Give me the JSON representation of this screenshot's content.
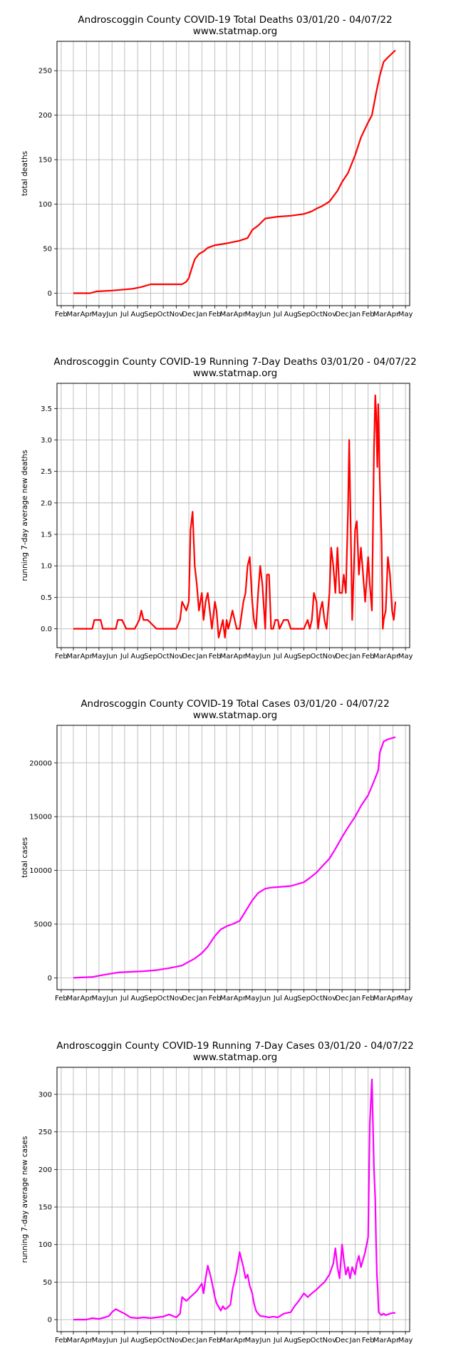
{
  "chart_data": [
    {
      "type": "line",
      "title": "Androscoggin County COVID-19 Total Deaths 03/01/20 - 04/07/22",
      "subtitle": "www.statmap.org",
      "xlabel": "",
      "ylabel": "total deaths",
      "color": "#ff0000",
      "ylim": [
        -14,
        283
      ],
      "yticks": [
        0,
        50,
        100,
        150,
        200,
        250
      ],
      "grid": true,
      "x_tick_labels": [
        "Feb",
        "Mar",
        "Apr",
        "May",
        "Jun",
        "Jul",
        "Aug",
        "Sep",
        "Oct",
        "Nov",
        "Dec",
        "Jan",
        "Feb",
        "Mar",
        "Apr",
        "May",
        "Jun",
        "Jul",
        "Aug",
        "Sep",
        "Oct",
        "Nov",
        "Dec",
        "Jan",
        "Feb",
        "Mar",
        "Apr",
        "May"
      ],
      "x_tick_months": [
        "2020-02",
        "2020-03",
        "2020-04",
        "2020-05",
        "2020-06",
        "2020-07",
        "2020-08",
        "2020-09",
        "2020-10",
        "2020-11",
        "2020-12",
        "2021-01",
        "2021-02",
        "2021-03",
        "2021-04",
        "2021-05",
        "2021-06",
        "2021-07",
        "2021-08",
        "2021-09",
        "2021-10",
        "2021-11",
        "2021-12",
        "2022-01",
        "2022-02",
        "2022-03",
        "2022-04",
        "2022-05"
      ],
      "x": [
        "2020-03-01",
        "2020-04-10",
        "2020-04-25",
        "2020-06-01",
        "2020-07-20",
        "2020-08-10",
        "2020-09-01",
        "2020-10-15",
        "2020-11-15",
        "2020-11-25",
        "2020-12-01",
        "2020-12-08",
        "2020-12-15",
        "2020-12-25",
        "2021-01-05",
        "2021-01-15",
        "2021-02-01",
        "2021-03-01",
        "2021-04-01",
        "2021-04-20",
        "2021-05-01",
        "2021-05-15",
        "2021-06-01",
        "2021-07-01",
        "2021-08-01",
        "2021-09-01",
        "2021-09-20",
        "2021-10-01",
        "2021-10-15",
        "2021-11-01",
        "2021-11-20",
        "2021-12-01",
        "2021-12-15",
        "2022-01-01",
        "2022-01-15",
        "2022-02-01",
        "2022-02-10",
        "2022-02-20",
        "2022-03-01",
        "2022-03-10",
        "2022-03-20",
        "2022-04-07"
      ],
      "values": [
        0,
        0,
        2,
        3,
        5,
        7,
        10,
        10,
        10,
        13,
        17,
        28,
        38,
        44,
        47,
        51,
        54,
        56,
        59,
        62,
        71,
        76,
        84,
        86,
        87,
        89,
        92,
        95,
        98,
        103,
        115,
        125,
        135,
        155,
        175,
        192,
        200,
        225,
        245,
        260,
        265,
        273
      ]
    },
    {
      "type": "line",
      "title": "Androscoggin County COVID-19 Running 7-Day Deaths 03/01/20 - 04/07/22",
      "subtitle": "www.statmap.org",
      "xlabel": "",
      "ylabel": "running 7-day average new deaths",
      "color": "#ff0000",
      "ylim": [
        -0.3,
        3.9
      ],
      "yticks": [
        0.0,
        0.5,
        1.0,
        1.5,
        2.0,
        2.5,
        3.0,
        3.5
      ],
      "grid": true,
      "x_tick_labels": [
        "Feb",
        "Mar",
        "Apr",
        "May",
        "Jun",
        "Jul",
        "Aug",
        "Sep",
        "Oct",
        "Nov",
        "Dec",
        "Jan",
        "Feb",
        "Mar",
        "Apr",
        "May",
        "Jun",
        "Jul",
        "Aug",
        "Sep",
        "Oct",
        "Nov",
        "Dec",
        "Jan",
        "Feb",
        "Mar",
        "Apr",
        "May"
      ],
      "x_tick_months": [
        "2020-02",
        "2020-03",
        "2020-04",
        "2020-05",
        "2020-06",
        "2020-07",
        "2020-08",
        "2020-09",
        "2020-10",
        "2020-11",
        "2020-12",
        "2021-01",
        "2021-02",
        "2021-03",
        "2021-04",
        "2021-05",
        "2021-06",
        "2021-07",
        "2021-08",
        "2021-09",
        "2021-10",
        "2021-11",
        "2021-12",
        "2022-01",
        "2022-02",
        "2022-03",
        "2022-04",
        "2022-05"
      ],
      "x": [
        "2020-03-01",
        "2020-04-15",
        "2020-04-20",
        "2020-05-05",
        "2020-05-10",
        "2020-06-10",
        "2020-06-15",
        "2020-06-25",
        "2020-07-05",
        "2020-07-25",
        "2020-08-05",
        "2020-08-10",
        "2020-08-15",
        "2020-08-25",
        "2020-09-15",
        "2020-11-01",
        "2020-11-10",
        "2020-11-15",
        "2020-11-25",
        "2020-12-01",
        "2020-12-05",
        "2020-12-10",
        "2020-12-15",
        "2020-12-20",
        "2020-12-25",
        "2021-01-01",
        "2021-01-05",
        "2021-01-10",
        "2021-01-15",
        "2021-01-20",
        "2021-01-25",
        "2021-02-01",
        "2021-02-05",
        "2021-02-10",
        "2021-02-15",
        "2021-02-20",
        "2021-02-25",
        "2021-03-01",
        "2021-03-05",
        "2021-03-10",
        "2021-03-15",
        "2021-03-25",
        "2021-04-01",
        "2021-04-10",
        "2021-04-15",
        "2021-04-20",
        "2021-04-25",
        "2021-05-01",
        "2021-05-05",
        "2021-05-10",
        "2021-05-15",
        "2021-05-20",
        "2021-05-25",
        "2021-06-01",
        "2021-06-05",
        "2021-06-10",
        "2021-06-15",
        "2021-06-20",
        "2021-06-25",
        "2021-07-01",
        "2021-07-05",
        "2021-07-15",
        "2021-07-25",
        "2021-08-01",
        "2021-08-10",
        "2021-08-15",
        "2021-09-01",
        "2021-09-10",
        "2021-09-15",
        "2021-09-20",
        "2021-09-25",
        "2021-10-01",
        "2021-10-05",
        "2021-10-10",
        "2021-10-15",
        "2021-10-20",
        "2021-10-25",
        "2021-11-01",
        "2021-11-05",
        "2021-11-10",
        "2021-11-15",
        "2021-11-20",
        "2021-11-25",
        "2021-12-01",
        "2021-12-05",
        "2021-12-10",
        "2021-12-15",
        "2021-12-18",
        "2021-12-22",
        "2021-12-25",
        "2022-01-01",
        "2022-01-05",
        "2022-01-10",
        "2022-01-15",
        "2022-01-20",
        "2022-01-25",
        "2022-02-01",
        "2022-02-05",
        "2022-02-10",
        "2022-02-15",
        "2022-02-18",
        "2022-02-20",
        "2022-02-23",
        "2022-02-25",
        "2022-03-01",
        "2022-03-05",
        "2022-03-08",
        "2022-03-10",
        "2022-03-15",
        "2022-03-20",
        "2022-03-25",
        "2022-03-30",
        "2022-04-03",
        "2022-04-07"
      ],
      "values": [
        0,
        0,
        0.14,
        0.14,
        0,
        0,
        0.14,
        0.14,
        0,
        0,
        0.14,
        0.29,
        0.14,
        0.14,
        0,
        0,
        0.14,
        0.43,
        0.29,
        0.43,
        1.57,
        1.86,
        1.0,
        0.71,
        0.29,
        0.57,
        0.14,
        0.43,
        0.57,
        0.29,
        0,
        0.43,
        0.29,
        -0.14,
        0,
        0.14,
        -0.14,
        0.14,
        0,
        0.14,
        0.29,
        0,
        0,
        0.43,
        0.57,
        1.0,
        1.14,
        0.43,
        0.14,
        0,
        0.57,
        1.0,
        0.71,
        0,
        0.86,
        0.86,
        0,
        0,
        0.14,
        0.14,
        0,
        0.14,
        0.14,
        0,
        0,
        0,
        0,
        0.14,
        0,
        0.14,
        0.57,
        0.43,
        0,
        0.29,
        0.43,
        0.14,
        0,
        0.57,
        1.29,
        1.0,
        0.57,
        1.29,
        0.57,
        0.57,
        0.86,
        0.57,
        1.86,
        3.0,
        1.43,
        0.14,
        1.57,
        1.71,
        0.86,
        1.29,
        0.86,
        0.43,
        1.14,
        0.71,
        0.29,
        2.86,
        3.71,
        3.43,
        2.57,
        3.57,
        2.29,
        1.43,
        0,
        0.14,
        0.29,
        1.14,
        0.86,
        0.29,
        0.14,
        0.43
      ]
    },
    {
      "type": "line",
      "title": "Androscoggin County COVID-19 Total Cases 03/01/20 - 04/07/22",
      "subtitle": "www.statmap.org",
      "xlabel": "",
      "ylabel": "total cases",
      "color": "#ff00ff",
      "ylim": [
        -1100,
        23500
      ],
      "yticks": [
        0,
        5000,
        10000,
        15000,
        20000
      ],
      "grid": true,
      "x_tick_labels": [
        "Feb",
        "Mar",
        "Apr",
        "May",
        "Jun",
        "Jul",
        "Aug",
        "Sep",
        "Oct",
        "Nov",
        "Dec",
        "Jan",
        "Feb",
        "Mar",
        "Apr",
        "May",
        "Jun",
        "Jul",
        "Aug",
        "Sep",
        "Oct",
        "Nov",
        "Dec",
        "Jan",
        "Feb",
        "Mar",
        "Apr",
        "May"
      ],
      "x_tick_months": [
        "2020-02",
        "2020-03",
        "2020-04",
        "2020-05",
        "2020-06",
        "2020-07",
        "2020-08",
        "2020-09",
        "2020-10",
        "2020-11",
        "2020-12",
        "2021-01",
        "2021-02",
        "2021-03",
        "2021-04",
        "2021-05",
        "2021-06",
        "2021-07",
        "2021-08",
        "2021-09",
        "2021-10",
        "2021-11",
        "2021-12",
        "2022-01",
        "2022-02",
        "2022-03",
        "2022-04",
        "2022-05"
      ],
      "x": [
        "2020-03-01",
        "2020-04-15",
        "2020-05-15",
        "2020-06-15",
        "2020-07-15",
        "2020-08-15",
        "2020-09-15",
        "2020-10-15",
        "2020-11-15",
        "2020-12-01",
        "2020-12-15",
        "2021-01-01",
        "2021-01-15",
        "2021-02-01",
        "2021-02-15",
        "2021-03-01",
        "2021-03-15",
        "2021-04-01",
        "2021-04-15",
        "2021-05-01",
        "2021-05-15",
        "2021-06-01",
        "2021-06-15",
        "2021-07-01",
        "2021-08-01",
        "2021-09-01",
        "2021-09-15",
        "2021-10-01",
        "2021-10-15",
        "2021-11-01",
        "2021-11-15",
        "2021-12-01",
        "2021-12-15",
        "2022-01-01",
        "2022-01-15",
        "2022-02-01",
        "2022-02-15",
        "2022-02-25",
        "2022-03-01",
        "2022-03-10",
        "2022-03-20",
        "2022-04-07"
      ],
      "values": [
        0,
        80,
        300,
        500,
        560,
        620,
        720,
        900,
        1150,
        1500,
        1800,
        2300,
        2900,
        3900,
        4500,
        4800,
        5000,
        5300,
        6200,
        7200,
        7900,
        8300,
        8400,
        8450,
        8550,
        8900,
        9300,
        9800,
        10400,
        11100,
        12000,
        13100,
        14000,
        15000,
        16000,
        17000,
        18300,
        19300,
        21000,
        22000,
        22200,
        22400
      ]
    },
    {
      "type": "line",
      "title": "Androscoggin County COVID-19 Running 7-Day Cases 03/01/20 - 04/07/22",
      "subtitle": "www.statmap.org",
      "xlabel": "",
      "ylabel": "running 7-day average new cases",
      "color": "#ff00ff",
      "ylim": [
        -16,
        336
      ],
      "yticks": [
        0,
        50,
        100,
        150,
        200,
        250,
        300
      ],
      "grid": true,
      "x_tick_labels": [
        "Feb",
        "Mar",
        "Apr",
        "May",
        "Jun",
        "Jul",
        "Aug",
        "Sep",
        "Oct",
        "Nov",
        "Dec",
        "Jan",
        "Feb",
        "Mar",
        "Apr",
        "May",
        "Jun",
        "Jul",
        "Aug",
        "Sep",
        "Oct",
        "Nov",
        "Dec",
        "Jan",
        "Feb",
        "Mar",
        "Apr",
        "May"
      ],
      "x_tick_months": [
        "2020-02",
        "2020-03",
        "2020-04",
        "2020-05",
        "2020-06",
        "2020-07",
        "2020-08",
        "2020-09",
        "2020-10",
        "2020-11",
        "2020-12",
        "2021-01",
        "2021-02",
        "2021-03",
        "2021-04",
        "2021-05",
        "2021-06",
        "2021-07",
        "2021-08",
        "2021-09",
        "2021-10",
        "2021-11",
        "2021-12",
        "2022-01",
        "2022-02",
        "2022-03",
        "2022-04",
        "2022-05"
      ],
      "x": [
        "2020-03-01",
        "2020-04-01",
        "2020-04-15",
        "2020-05-01",
        "2020-05-15",
        "2020-05-25",
        "2020-06-01",
        "2020-06-10",
        "2020-06-20",
        "2020-07-01",
        "2020-07-15",
        "2020-08-01",
        "2020-08-15",
        "2020-09-01",
        "2020-09-15",
        "2020-10-01",
        "2020-10-15",
        "2020-11-01",
        "2020-11-10",
        "2020-11-15",
        "2020-11-25",
        "2020-12-01",
        "2020-12-10",
        "2020-12-20",
        "2021-01-01",
        "2021-01-05",
        "2021-01-10",
        "2021-01-15",
        "2021-01-20",
        "2021-01-25",
        "2021-02-01",
        "2021-02-05",
        "2021-02-10",
        "2021-02-15",
        "2021-02-20",
        "2021-02-25",
        "2021-03-01",
        "2021-03-10",
        "2021-03-15",
        "2021-03-25",
        "2021-04-01",
        "2021-04-10",
        "2021-04-15",
        "2021-04-20",
        "2021-04-25",
        "2021-05-01",
        "2021-05-05",
        "2021-05-10",
        "2021-05-15",
        "2021-05-20",
        "2021-06-01",
        "2021-06-10",
        "2021-06-20",
        "2021-07-01",
        "2021-07-15",
        "2021-08-01",
        "2021-08-10",
        "2021-08-20",
        "2021-09-01",
        "2021-09-10",
        "2021-09-20",
        "2021-10-01",
        "2021-10-10",
        "2021-10-20",
        "2021-11-01",
        "2021-11-10",
        "2021-11-15",
        "2021-11-20",
        "2021-11-25",
        "2021-12-01",
        "2021-12-05",
        "2021-12-10",
        "2021-12-15",
        "2021-12-20",
        "2021-12-25",
        "2022-01-01",
        "2022-01-05",
        "2022-01-10",
        "2022-01-15",
        "2022-01-20",
        "2022-01-25",
        "2022-02-01",
        "2022-02-05",
        "2022-02-10",
        "2022-02-15",
        "2022-02-18",
        "2022-02-20",
        "2022-02-22",
        "2022-02-24",
        "2022-02-26",
        "2022-03-01",
        "2022-03-05",
        "2022-03-10",
        "2022-03-15",
        "2022-03-20",
        "2022-03-25",
        "2022-04-01",
        "2022-04-07"
      ],
      "values": [
        0,
        0,
        2,
        1,
        3,
        5,
        10,
        14,
        11,
        8,
        3,
        2,
        3,
        2,
        3,
        4,
        7,
        3,
        8,
        30,
        25,
        28,
        33,
        38,
        48,
        35,
        55,
        72,
        62,
        50,
        30,
        22,
        17,
        12,
        18,
        14,
        15,
        20,
        40,
        65,
        90,
        70,
        55,
        60,
        45,
        35,
        22,
        12,
        8,
        5,
        4,
        3,
        4,
        3,
        8,
        10,
        18,
        25,
        35,
        30,
        35,
        40,
        45,
        50,
        60,
        75,
        95,
        70,
        55,
        100,
        80,
        60,
        70,
        55,
        70,
        60,
        75,
        85,
        70,
        80,
        90,
        110,
        260,
        320,
        200,
        160,
        100,
        60,
        40,
        10,
        8,
        6,
        8,
        6,
        7,
        8,
        9,
        9
      ]
    }
  ]
}
